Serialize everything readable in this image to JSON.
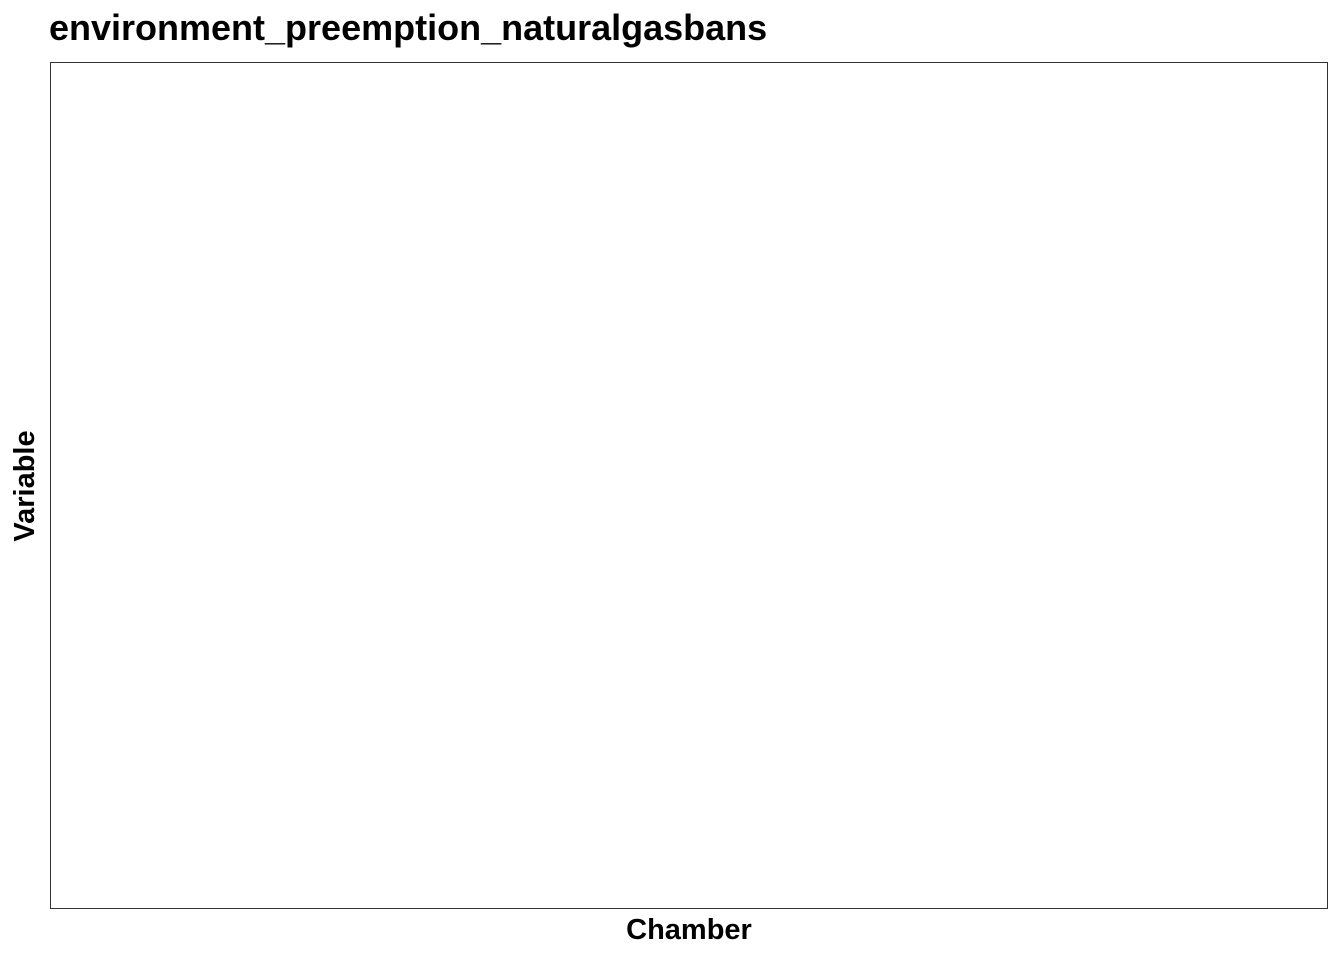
{
  "chart_data": {
    "type": "scatter",
    "title": "environment_preemption_naturalgasbans",
    "xlabel": "Chamber",
    "ylabel": "Variable",
    "series": [],
    "grid": false,
    "legend": "none"
  },
  "colors": {
    "background": "#ffffff",
    "panel_border": "#333333",
    "text": "#000000"
  }
}
